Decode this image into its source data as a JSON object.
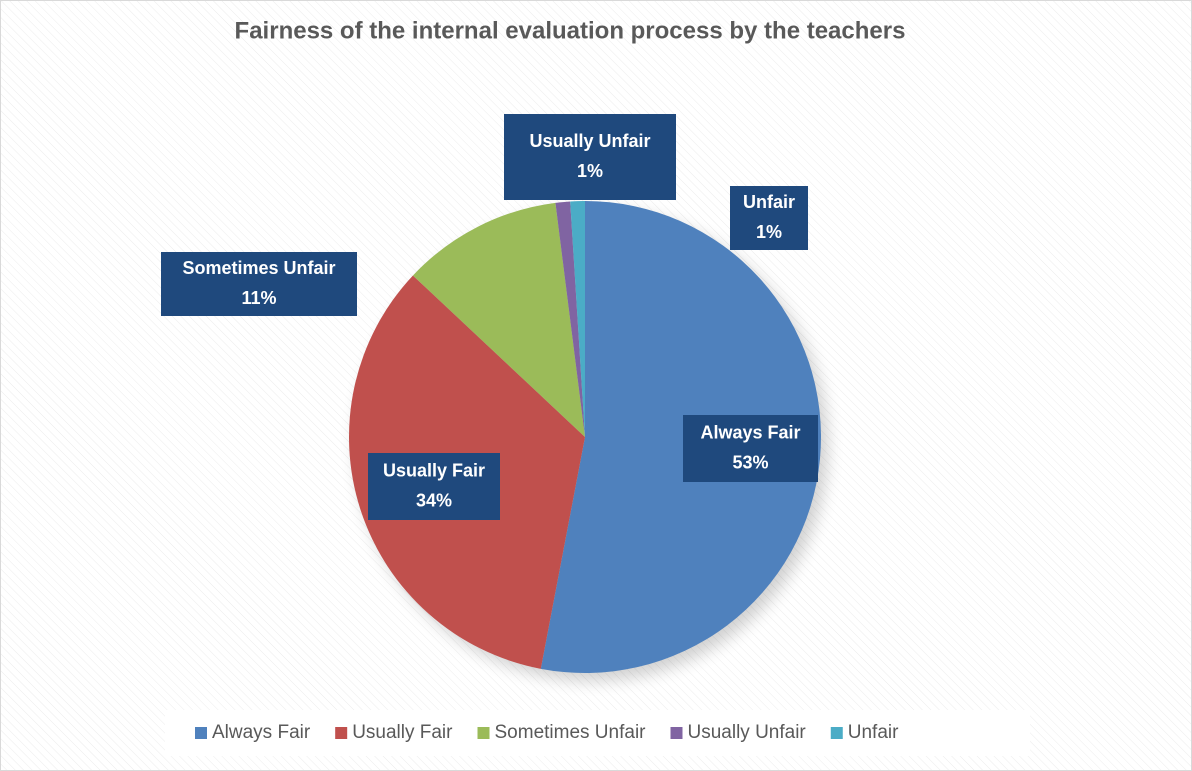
{
  "chart_data": {
    "type": "pie",
    "title": "Fairness of the internal evaluation process by the teachers",
    "categories": [
      "Always Fair",
      "Usually Fair",
      "Sometimes Unfair",
      "Usually Unfair",
      "Unfair"
    ],
    "values": [
      53,
      34,
      11,
      1,
      1
    ],
    "value_labels": [
      "53%",
      "34%",
      "11%",
      "1%",
      "1%"
    ],
    "colors": [
      "#4f81bd",
      "#c0504d",
      "#9bbb59",
      "#8064a2",
      "#4bacc6"
    ],
    "legend": "bottom"
  }
}
